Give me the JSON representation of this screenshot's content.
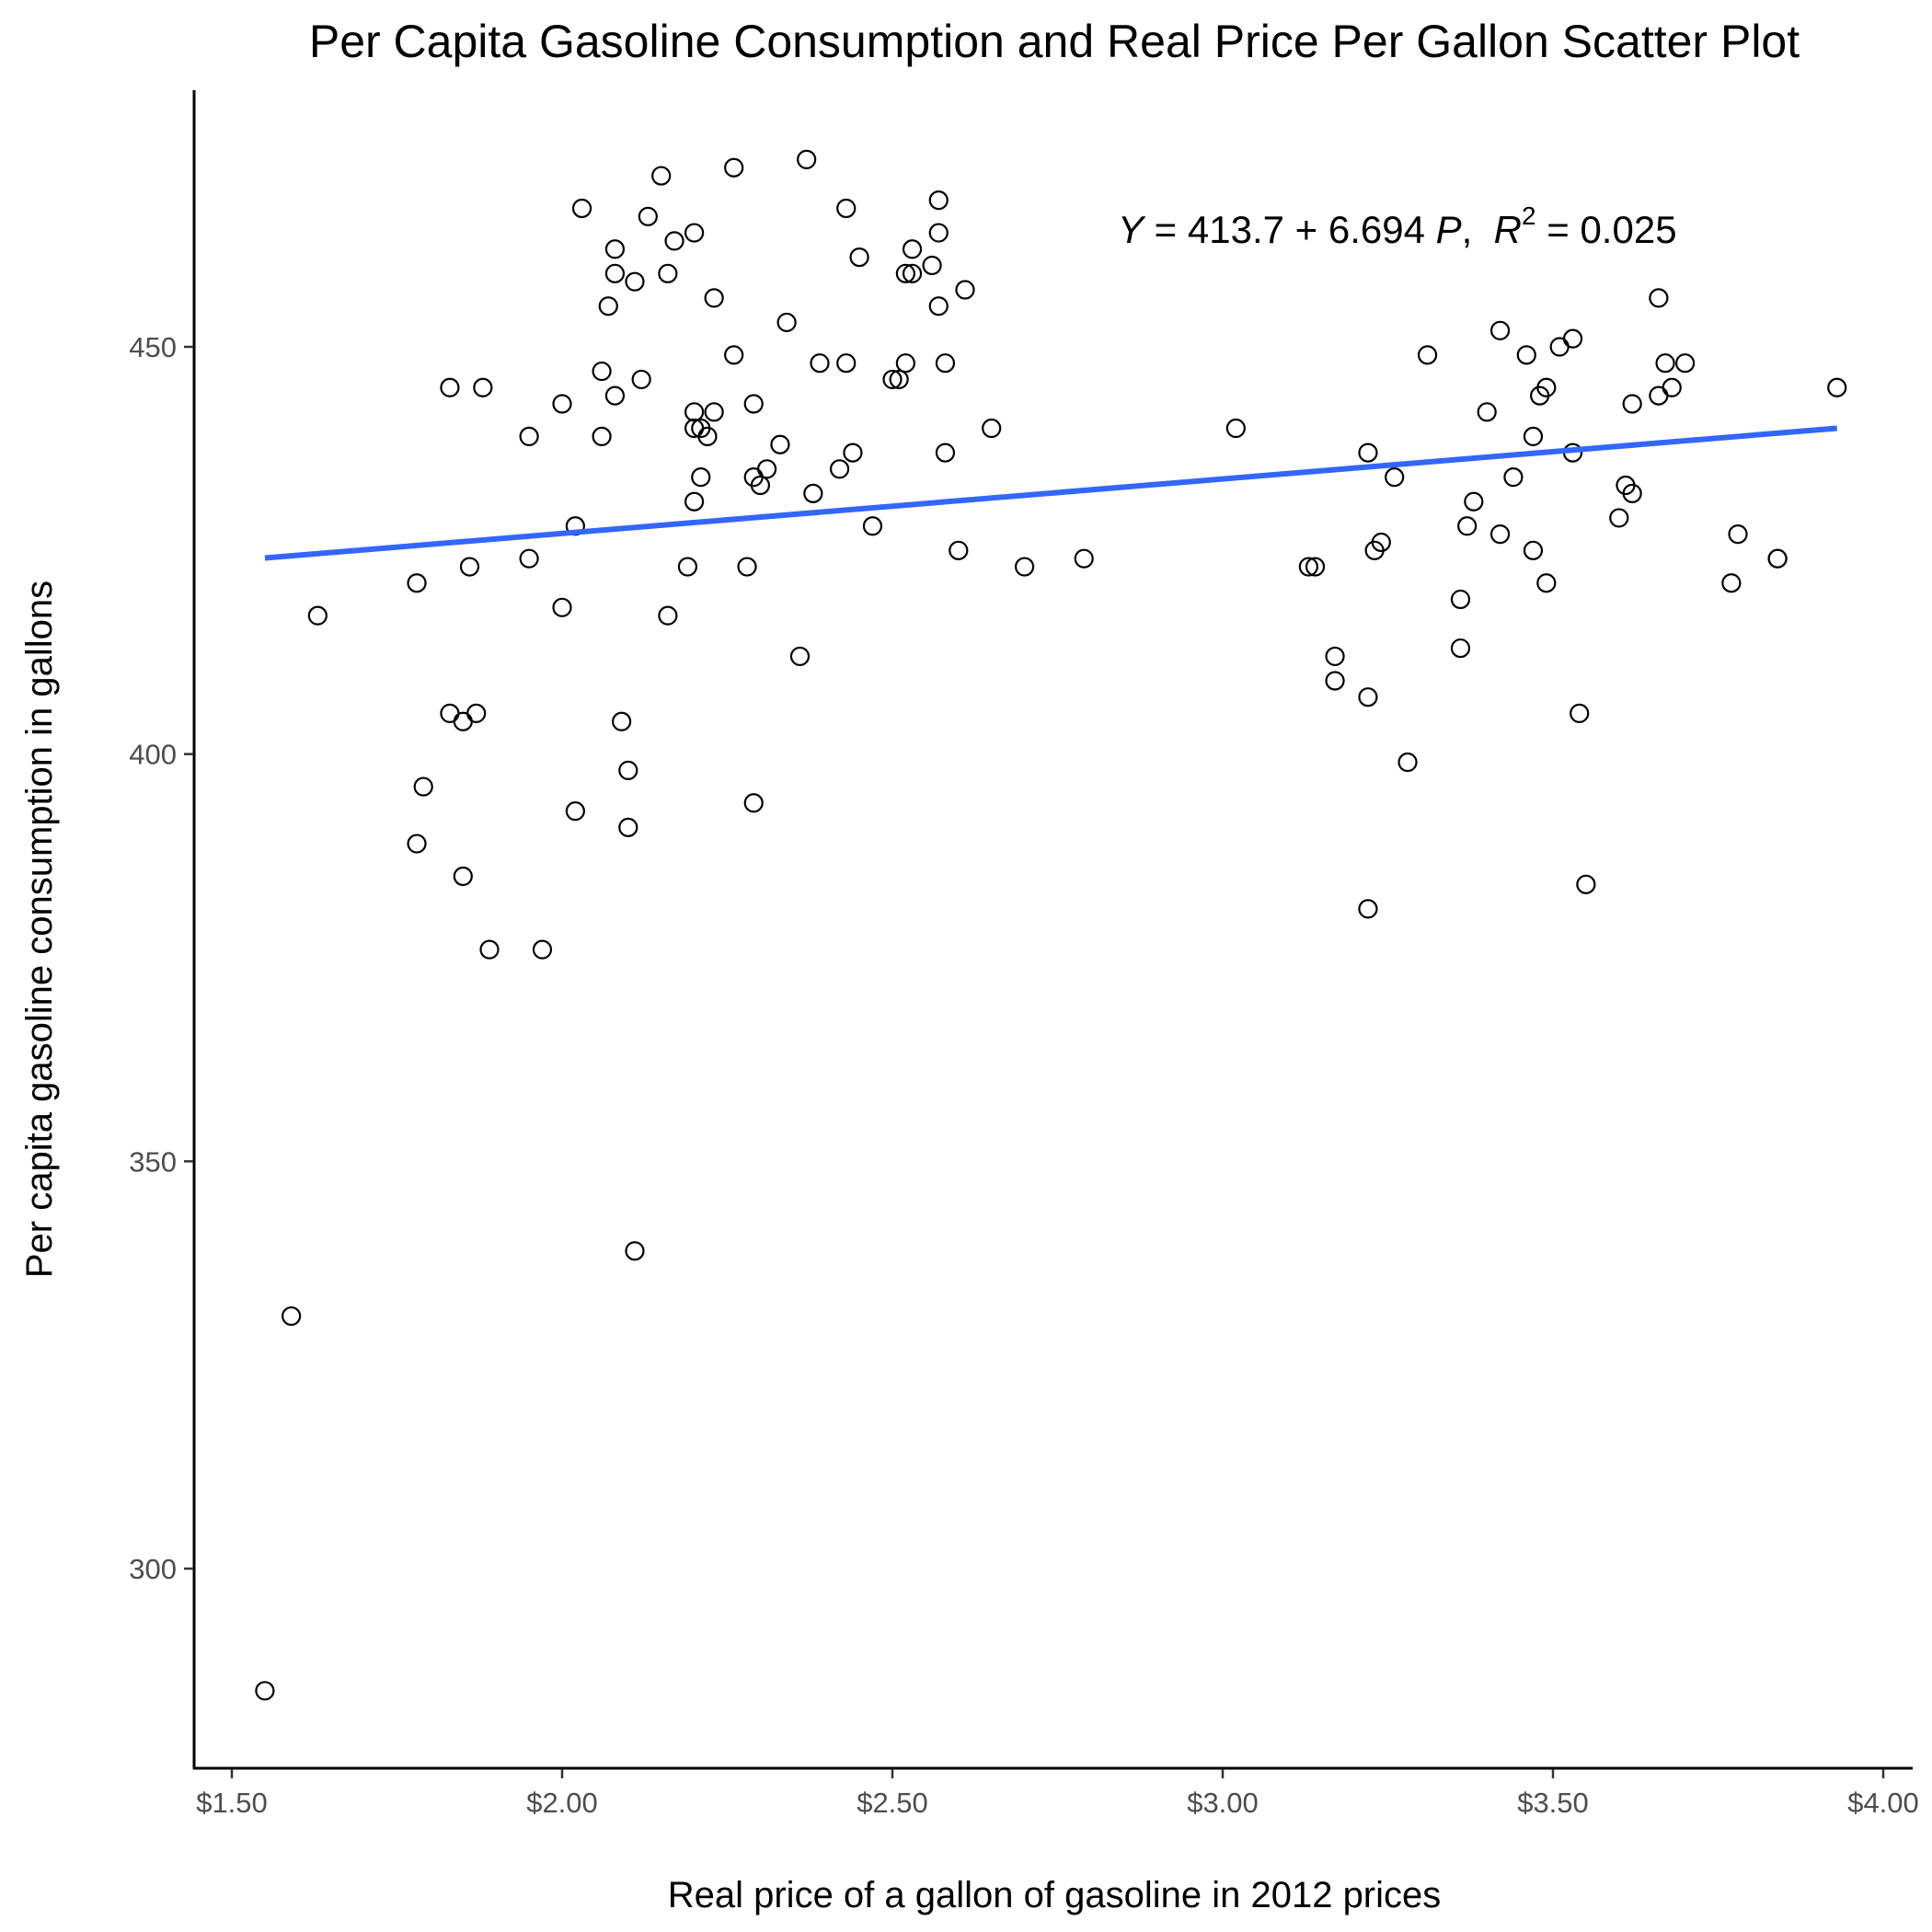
{
  "chart_data": {
    "type": "scatter",
    "title": "Per Capita Gasoline Consumption and Real Price Per Gallon Scatter Plot",
    "xlabel": "Real price of a gallon of gasoline in 2012 prices",
    "ylabel": "Per capita gasoline consumption in gallons",
    "x_tick_values": [
      1.5,
      2.0,
      2.5,
      3.0,
      3.5,
      4.0
    ],
    "x_tick_labels": [
      "$1.50",
      "$2.00",
      "$2.50",
      "$3.00",
      "$3.50",
      "$4.00"
    ],
    "y_tick_values": [
      300,
      350,
      400,
      450
    ],
    "y_tick_labels": [
      "300",
      "350",
      "400",
      "450"
    ],
    "xlim": [
      1.45,
      4.05
    ],
    "ylim": [
      275,
      485
    ],
    "grid": false,
    "fit_line": {
      "intercept": 413.7,
      "slope": 6.694,
      "x_range": [
        1.55,
        3.93
      ],
      "color": "#3366FF"
    },
    "annotation": {
      "y_var": "Y",
      "equals": " = 413.7 + 6.694 ",
      "x_var": "P",
      "separator": ",  ",
      "r_var": "R",
      "r_sup": "2",
      "r_value": " = 0.025"
    },
    "points": [
      [
        1.55,
        285
      ],
      [
        1.59,
        331
      ],
      [
        1.63,
        417
      ],
      [
        1.78,
        389
      ],
      [
        1.78,
        421
      ],
      [
        1.79,
        396
      ],
      [
        1.83,
        445
      ],
      [
        1.83,
        405
      ],
      [
        1.85,
        385
      ],
      [
        1.85,
        404
      ],
      [
        1.86,
        423
      ],
      [
        1.87,
        405
      ],
      [
        1.88,
        445
      ],
      [
        1.89,
        376
      ],
      [
        1.95,
        439
      ],
      [
        1.95,
        424
      ],
      [
        1.97,
        376
      ],
      [
        2.0,
        443
      ],
      [
        2.0,
        418
      ],
      [
        2.02,
        428
      ],
      [
        2.02,
        393
      ],
      [
        2.03,
        467
      ],
      [
        2.06,
        439
      ],
      [
        2.06,
        447
      ],
      [
        2.07,
        455
      ],
      [
        2.08,
        444
      ],
      [
        2.08,
        459
      ],
      [
        2.08,
        462
      ],
      [
        2.09,
        404
      ],
      [
        2.1,
        398
      ],
      [
        2.1,
        391
      ],
      [
        2.11,
        339
      ],
      [
        2.11,
        458
      ],
      [
        2.12,
        446
      ],
      [
        2.13,
        466
      ],
      [
        2.15,
        471
      ],
      [
        2.16,
        459
      ],
      [
        2.16,
        417
      ],
      [
        2.17,
        463
      ],
      [
        2.19,
        423
      ],
      [
        2.2,
        431
      ],
      [
        2.2,
        464
      ],
      [
        2.2,
        442
      ],
      [
        2.2,
        440
      ],
      [
        2.21,
        440
      ],
      [
        2.21,
        434
      ],
      [
        2.22,
        439
      ],
      [
        2.23,
        442
      ],
      [
        2.23,
        456
      ],
      [
        2.26,
        472
      ],
      [
        2.26,
        449
      ],
      [
        2.28,
        423
      ],
      [
        2.29,
        443
      ],
      [
        2.29,
        434
      ],
      [
        2.29,
        394
      ],
      [
        2.3,
        433
      ],
      [
        2.31,
        435
      ],
      [
        2.33,
        438
      ],
      [
        2.34,
        453
      ],
      [
        2.36,
        412
      ],
      [
        2.37,
        473
      ],
      [
        2.38,
        432
      ],
      [
        2.39,
        448
      ],
      [
        2.42,
        435
      ],
      [
        2.43,
        448
      ],
      [
        2.43,
        467
      ],
      [
        2.44,
        437
      ],
      [
        2.45,
        461
      ],
      [
        2.47,
        428
      ],
      [
        2.5,
        446
      ],
      [
        2.51,
        446
      ],
      [
        2.52,
        448
      ],
      [
        2.52,
        459
      ],
      [
        2.53,
        459
      ],
      [
        2.53,
        462
      ],
      [
        2.56,
        460
      ],
      [
        2.57,
        455
      ],
      [
        2.57,
        464
      ],
      [
        2.57,
        468
      ],
      [
        2.58,
        448
      ],
      [
        2.58,
        437
      ],
      [
        2.6,
        425
      ],
      [
        2.61,
        457
      ],
      [
        2.65,
        440
      ],
      [
        2.7,
        423
      ],
      [
        2.79,
        424
      ],
      [
        3.02,
        440
      ],
      [
        3.13,
        423
      ],
      [
        3.14,
        423
      ],
      [
        3.17,
        412
      ],
      [
        3.17,
        409
      ],
      [
        3.22,
        381
      ],
      [
        3.22,
        407
      ],
      [
        3.22,
        437
      ],
      [
        3.23,
        425
      ],
      [
        3.24,
        426
      ],
      [
        3.26,
        434
      ],
      [
        3.28,
        399
      ],
      [
        3.31,
        449
      ],
      [
        3.36,
        413
      ],
      [
        3.36,
        419
      ],
      [
        3.37,
        428
      ],
      [
        3.38,
        431
      ],
      [
        3.4,
        442
      ],
      [
        3.42,
        427
      ],
      [
        3.42,
        452
      ],
      [
        3.44,
        434
      ],
      [
        3.46,
        449
      ],
      [
        3.47,
        439
      ],
      [
        3.47,
        425
      ],
      [
        3.48,
        444
      ],
      [
        3.49,
        421
      ],
      [
        3.49,
        445
      ],
      [
        3.51,
        450
      ],
      [
        3.53,
        437
      ],
      [
        3.53,
        451
      ],
      [
        3.54,
        405
      ],
      [
        3.55,
        384
      ],
      [
        3.6,
        429
      ],
      [
        3.61,
        433
      ],
      [
        3.62,
        432
      ],
      [
        3.62,
        443
      ],
      [
        3.66,
        444
      ],
      [
        3.66,
        456
      ],
      [
        3.67,
        448
      ],
      [
        3.68,
        445
      ],
      [
        3.7,
        448
      ],
      [
        3.77,
        421
      ],
      [
        3.78,
        427
      ],
      [
        3.84,
        424
      ],
      [
        3.84,
        424
      ],
      [
        3.93,
        445
      ]
    ]
  }
}
